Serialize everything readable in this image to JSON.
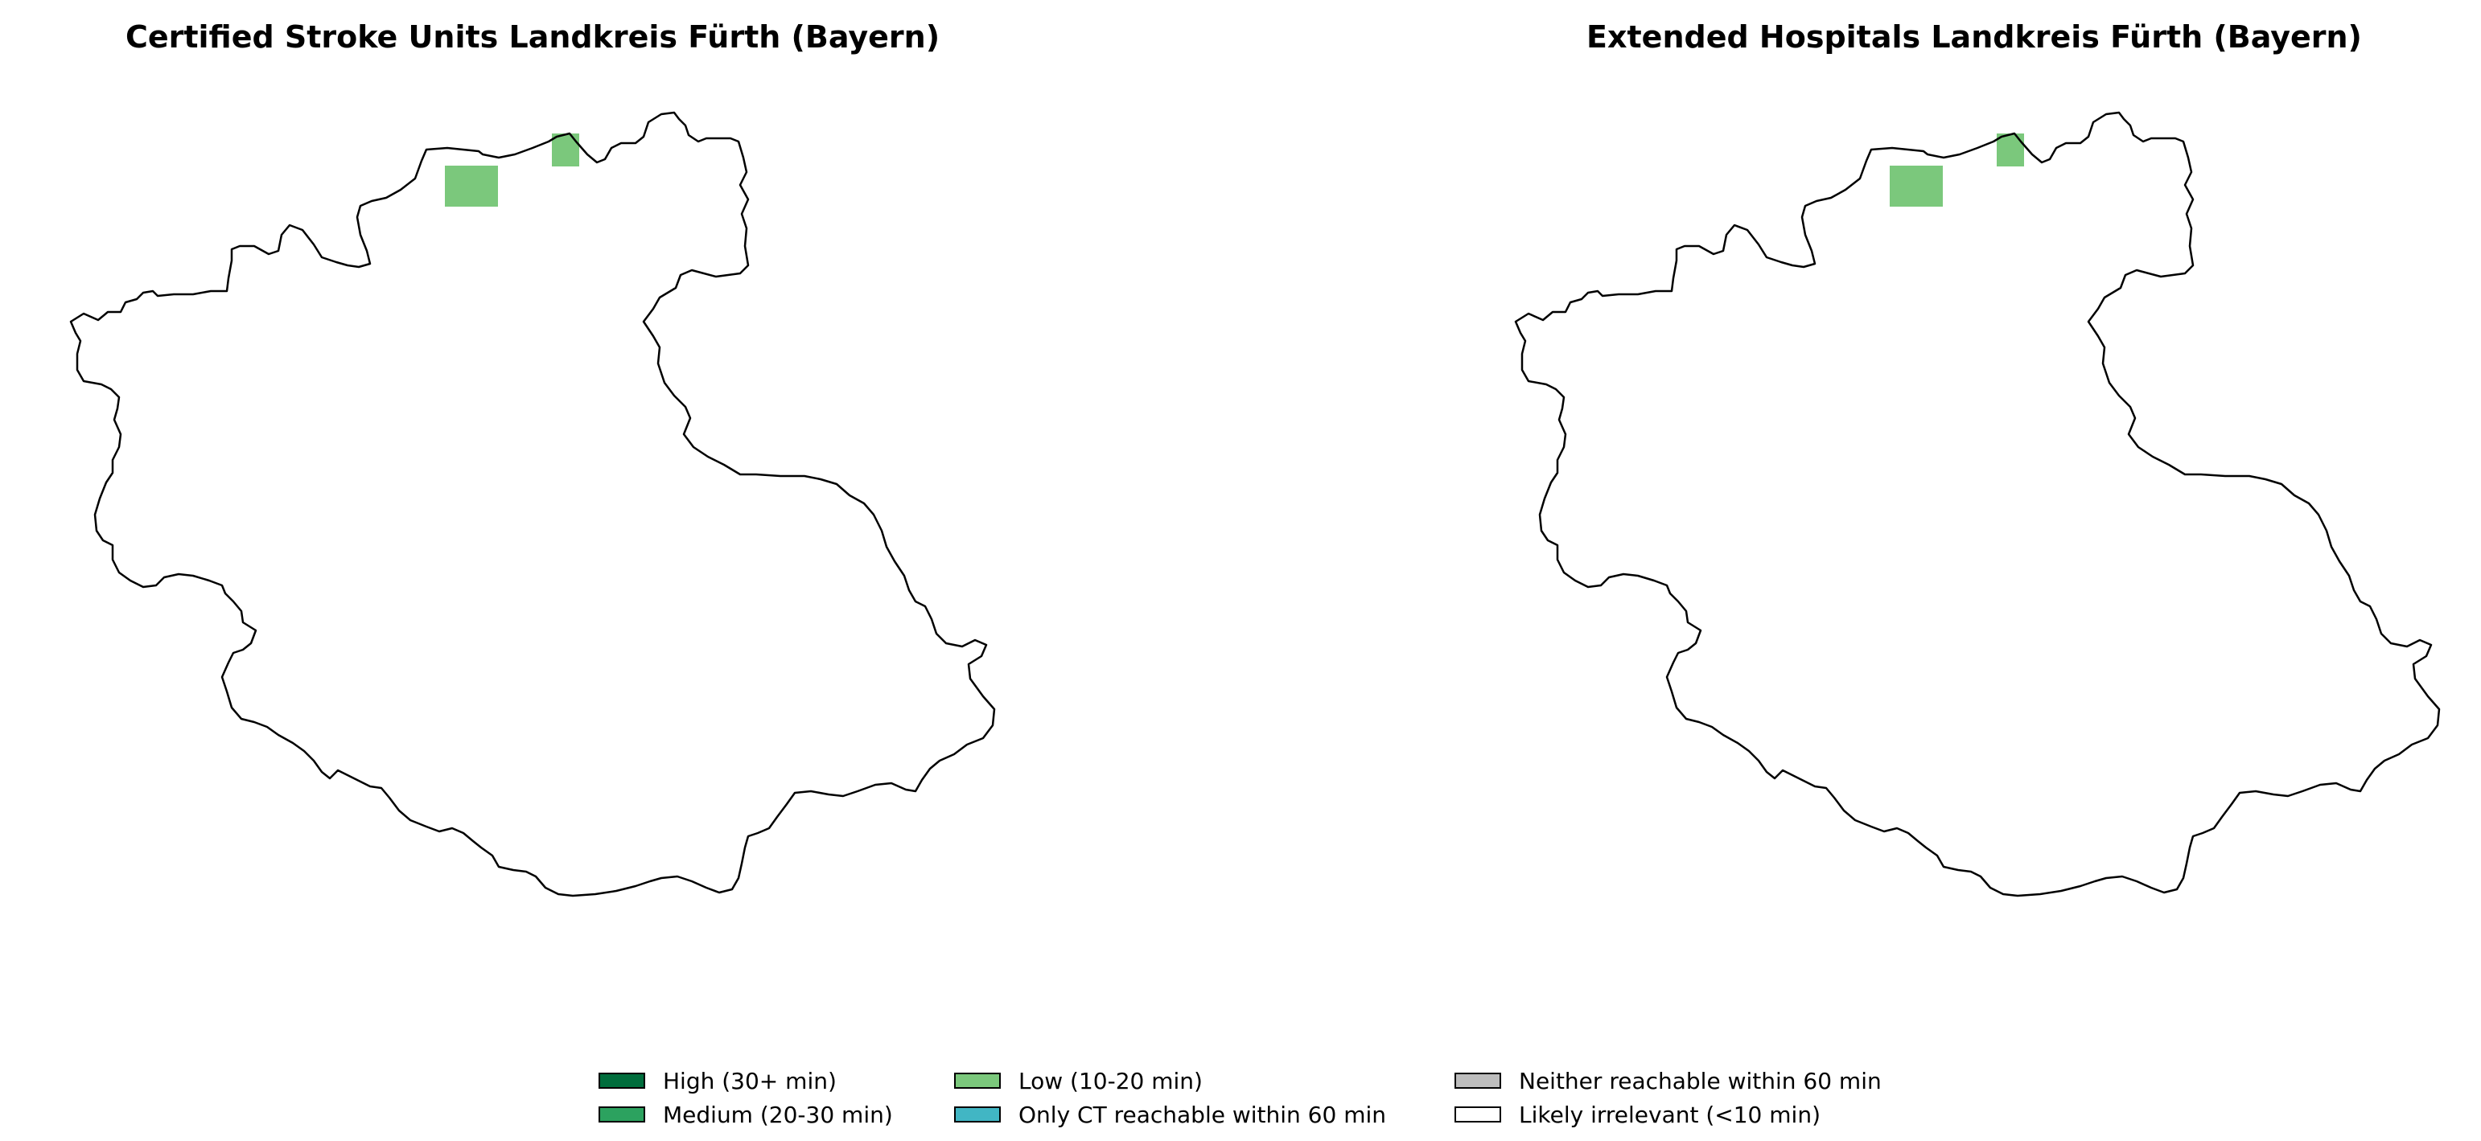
{
  "panels": [
    {
      "title": "Certified Stroke Units Landkreis Fürth (Bayern)"
    },
    {
      "title": "Extended Hospitals Landkreis Fürth (Bayern)"
    }
  ],
  "highlighted_areas_category": "Low (10-20 min)",
  "legend": {
    "items": [
      {
        "label": "High (30+ min)",
        "color": "#006d3c"
      },
      {
        "label": "Medium (20-30 min)",
        "color": "#2ca25f"
      },
      {
        "label": "Low (10-20 min)",
        "color": "#7bc87c"
      },
      {
        "label": "Only CT reachable within 60 min",
        "color": "#41b6c4"
      },
      {
        "label": "Neither reachable within 60 min",
        "color": "#bdbdbd"
      },
      {
        "label": "Likely irrelevant (<10 min)",
        "color": "#ffffff"
      }
    ]
  }
}
